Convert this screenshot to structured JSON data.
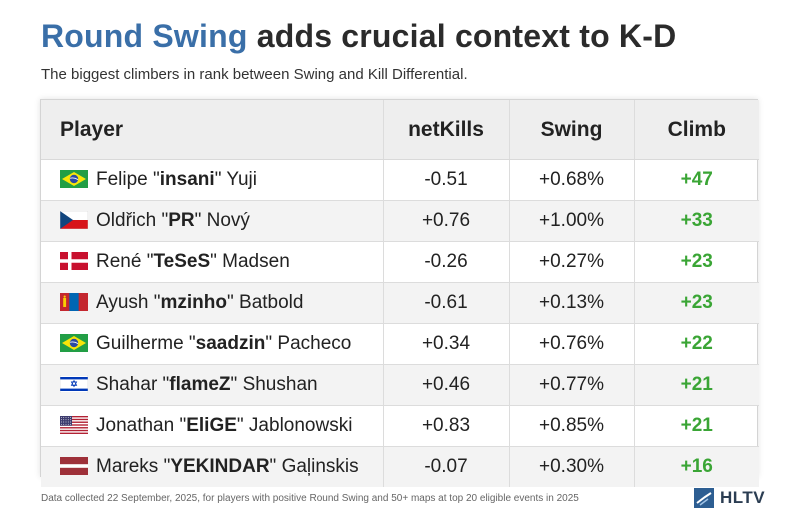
{
  "header": {
    "title_highlight": "Round Swing",
    "title_rest": " adds crucial context to K-D",
    "subtitle": "The biggest climbers in rank between Swing and Kill Differential."
  },
  "table": {
    "columns": [
      "Player",
      "netKills",
      "Swing",
      "Climb"
    ],
    "rows": [
      {
        "flag": "brazil-flag-icon",
        "first": "Felipe \"",
        "nick": "insani",
        "last": "\" Yuji",
        "netkills": "-0.51",
        "swing": "+0.68%",
        "climb": "+47"
      },
      {
        "flag": "czech-flag-icon",
        "first": "Oldřich \"",
        "nick": "PR",
        "last": "\" Nový",
        "netkills": "+0.76",
        "swing": "+1.00%",
        "climb": "+33"
      },
      {
        "flag": "denmark-flag-icon",
        "first": "René \"",
        "nick": "TeSeS",
        "last": "\" Madsen",
        "netkills": "-0.26",
        "swing": "+0.27%",
        "climb": "+23"
      },
      {
        "flag": "mongolia-flag-icon",
        "first": "Ayush \"",
        "nick": "mzinho",
        "last": "\" Batbold",
        "netkills": "-0.61",
        "swing": "+0.13%",
        "climb": "+23"
      },
      {
        "flag": "brazil-flag-icon",
        "first": "Guilherme \"",
        "nick": "saadzin",
        "last": "\" Pacheco",
        "netkills": "+0.34",
        "swing": "+0.76%",
        "climb": "+22"
      },
      {
        "flag": "israel-flag-icon",
        "first": "Shahar \"",
        "nick": "flameZ",
        "last": "\" Shushan",
        "netkills": "+0.46",
        "swing": "+0.77%",
        "climb": "+21"
      },
      {
        "flag": "usa-flag-icon",
        "first": "Jonathan \"",
        "nick": "EliGE",
        "last": "\" Jablonowski",
        "netkills": "+0.83",
        "swing": "+0.85%",
        "climb": "+21"
      },
      {
        "flag": "latvia-flag-icon",
        "first": "Mareks \"",
        "nick": "YEKINDAR",
        "last": "\" Gaļinskis",
        "netkills": "-0.07",
        "swing": "+0.30%",
        "climb": "+16"
      }
    ]
  },
  "footer": {
    "note": "Data collected 22 September, 2025, for players with positive Round Swing and 50+ maps at top 20 eligible events in 2025",
    "logo_text": "HLTV"
  },
  "colors": {
    "title_accent": "#3a6fa8",
    "climb_green": "#3aa535",
    "logo_blue": "#2d5e92"
  }
}
